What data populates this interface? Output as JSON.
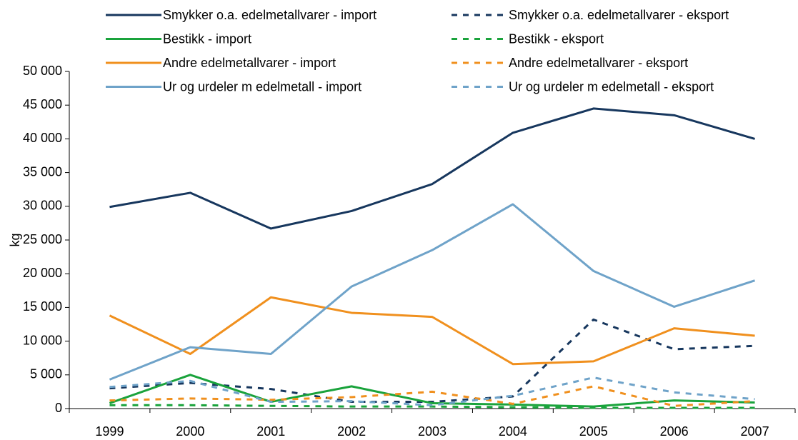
{
  "chart_data": {
    "type": "line",
    "y_label": "kg",
    "categories": [
      "1999",
      "2000",
      "2001",
      "2002",
      "2003",
      "2004",
      "2005",
      "2006",
      "2007"
    ],
    "series": [
      {
        "name": "Smykker o.a. edelmetallvarer - import",
        "color": "#17375e",
        "dashed": false,
        "values": [
          29900,
          32000,
          26700,
          29300,
          33300,
          40900,
          44500,
          43500,
          40000
        ]
      },
      {
        "name": "Smykker o.a. edelmetallvarer - eksport",
        "color": "#17375e",
        "dashed": true,
        "values": [
          3000,
          3800,
          2900,
          1000,
          1000,
          1800,
          13200,
          8800,
          9300
        ]
      },
      {
        "name": "Bestikk - import",
        "color": "#1aa33c",
        "dashed": false,
        "values": [
          800,
          5000,
          1000,
          3300,
          800,
          600,
          300,
          1200,
          900
        ]
      },
      {
        "name": "Bestikk - eksport",
        "color": "#1aa33c",
        "dashed": true,
        "values": [
          500,
          500,
          400,
          300,
          300,
          200,
          100,
          100,
          100
        ]
      },
      {
        "name": "Andre edelmetallvarer - import",
        "color": "#f0901e",
        "dashed": false,
        "values": [
          13800,
          8100,
          16500,
          14200,
          13600,
          6600,
          7000,
          11900,
          10800
        ]
      },
      {
        "name": "Andre edelmetallvarer - eksport",
        "color": "#f0901e",
        "dashed": true,
        "values": [
          1200,
          1500,
          1300,
          1700,
          2500,
          700,
          3300,
          400,
          1100
        ]
      },
      {
        "name": "Ur og urdeler m edelmetall - import",
        "color": "#6fa3c9",
        "dashed": false,
        "values": [
          4300,
          9100,
          8100,
          18100,
          23500,
          30300,
          20400,
          15100,
          19000
        ]
      },
      {
        "name": "Ur og urdeler m edelmetall - eksport",
        "color": "#6fa3c9",
        "dashed": true,
        "values": [
          3200,
          4100,
          1000,
          1100,
          500,
          1900,
          4600,
          2400,
          1400
        ]
      }
    ],
    "ylim": [
      0,
      50000
    ],
    "yticks": [
      0,
      {
        "value": 5000,
        "label": "5 000"
      },
      {
        "value": 10000,
        "label": "10 000"
      },
      {
        "value": 15000,
        "label": "15 000"
      },
      {
        "value": 20000,
        "label": "20 000"
      },
      {
        "value": 25000,
        "label": "25 000"
      },
      {
        "value": 30000,
        "label": "30 000"
      },
      {
        "value": 35000,
        "label": "35 000"
      },
      {
        "value": 40000,
        "label": "40 000"
      },
      {
        "value": 45000,
        "label": "45 000"
      },
      {
        "value": 50000,
        "label": "50 000"
      }
    ],
    "grid": false,
    "legend": "top"
  }
}
